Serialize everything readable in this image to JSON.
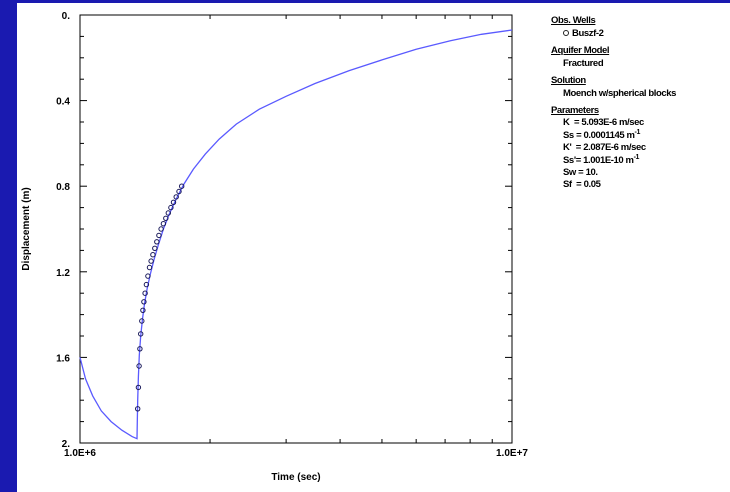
{
  "legend": {
    "obs_wells_heading": "Obs. Wells",
    "obs_well_name": "Buszf-2",
    "aquifer_model_heading": "Aquifer Model",
    "aquifer_model": "Fractured",
    "solution_heading": "Solution",
    "solution": "Moench w/spherical blocks",
    "parameters_heading": "Parameters",
    "parameters": [
      {
        "name": "K",
        "sep": "  = ",
        "value": "5.093E-6 m/sec",
        "sup": ""
      },
      {
        "name": "Ss",
        "sep": " = ",
        "value": "0.0001145 m",
        "sup": "-1"
      },
      {
        "name": "K'",
        "sep": "  = ",
        "value": "2.087E-6 m/sec",
        "sup": ""
      },
      {
        "name": "Ss'",
        "sep": "= ",
        "value": "1.001E-10 m",
        "sup": "-1"
      },
      {
        "name": "Sw",
        "sep": " = ",
        "value": "10.",
        "sup": ""
      },
      {
        "name": "Sf",
        "sep": "  = ",
        "value": "0.05",
        "sup": ""
      }
    ]
  },
  "chart_data": {
    "type": "scatter",
    "xlabel": "Time (sec)",
    "ylabel": "Displacement (m)",
    "x_scale": "log",
    "xlim": [
      1000000,
      10000000
    ],
    "ylim": [
      2,
      0
    ],
    "x_tick_labels": [
      "1.0E+6",
      "1.0E+7"
    ],
    "y_ticks": [
      0,
      0.4,
      0.8,
      1.2,
      1.6,
      2
    ],
    "y_tick_labels": [
      "0.",
      "0.4",
      "0.8",
      "1.2",
      "1.6",
      "2."
    ],
    "colors": {
      "curve": "#5a5aff",
      "markers": "#1a1a5a"
    },
    "series": [
      {
        "name": "Buszf-2",
        "kind": "observed",
        "x": [
          1360000,
          1365000,
          1370000,
          1376000,
          1382000,
          1390000,
          1398000,
          1406000,
          1415000,
          1425000,
          1436000,
          1448000,
          1461000,
          1475000,
          1490000,
          1506000,
          1523000,
          1541000,
          1560000,
          1580000,
          1601000,
          1623000,
          1646000,
          1670000,
          1695000,
          1720000
        ],
        "y": [
          1.84,
          1.74,
          1.64,
          1.56,
          1.49,
          1.43,
          1.38,
          1.34,
          1.3,
          1.26,
          1.22,
          1.18,
          1.15,
          1.12,
          1.09,
          1.06,
          1.03,
          1.0,
          0.975,
          0.95,
          0.925,
          0.9,
          0.875,
          0.85,
          0.825,
          0.8
        ]
      },
      {
        "kind": "fitted",
        "x": [
          1000000,
          1030000,
          1070000,
          1120000,
          1180000,
          1250000,
          1320000,
          1355000,
          1357000,
          1360000,
          1365000,
          1372000,
          1382000,
          1395000,
          1410000,
          1430000,
          1455000,
          1485000,
          1520000,
          1560000,
          1610000,
          1670000,
          1740000,
          1830000,
          1950000,
          2100000,
          2300000,
          2600000,
          3000000,
          3500000,
          4200000,
          5000000,
          6000000,
          7200000,
          8500000,
          10000000
        ],
        "y": [
          1.6,
          1.7,
          1.78,
          1.85,
          1.9,
          1.94,
          1.97,
          1.98,
          1.9,
          1.8,
          1.69,
          1.59,
          1.5,
          1.42,
          1.35,
          1.28,
          1.21,
          1.14,
          1.07,
          1.0,
          0.93,
          0.86,
          0.79,
          0.72,
          0.65,
          0.58,
          0.51,
          0.44,
          0.38,
          0.32,
          0.26,
          0.21,
          0.16,
          0.12,
          0.09,
          0.07
        ]
      }
    ]
  }
}
